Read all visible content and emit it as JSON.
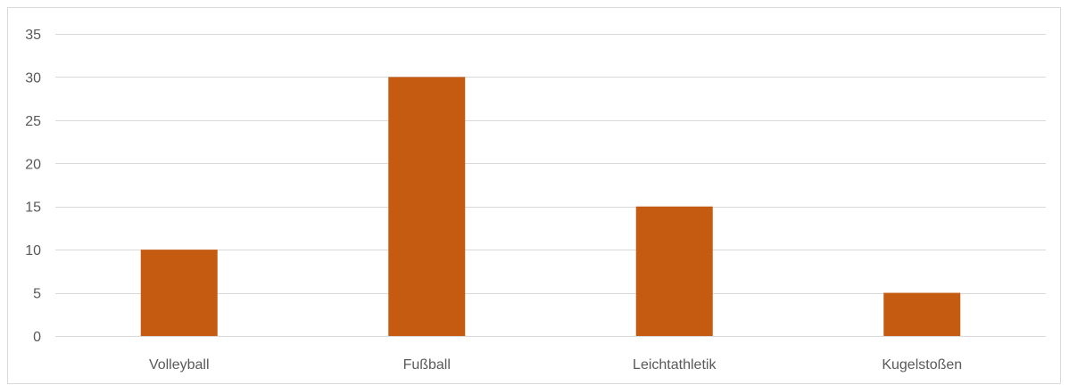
{
  "chart_data": {
    "type": "bar",
    "title": "",
    "xlabel": "",
    "ylabel": "",
    "categories": [
      "Volleyball",
      "Fußball",
      "Leichtathletik",
      "Kugelstoßen"
    ],
    "values": [
      10,
      30,
      15,
      5
    ],
    "ylim": [
      0,
      35
    ],
    "yticks": [
      0,
      5,
      10,
      15,
      20,
      25,
      30,
      35
    ],
    "grid": true,
    "legend": "none",
    "colors": {
      "bar": "#C55A11",
      "grid": "#D9D9D9",
      "text": "#595959"
    }
  }
}
